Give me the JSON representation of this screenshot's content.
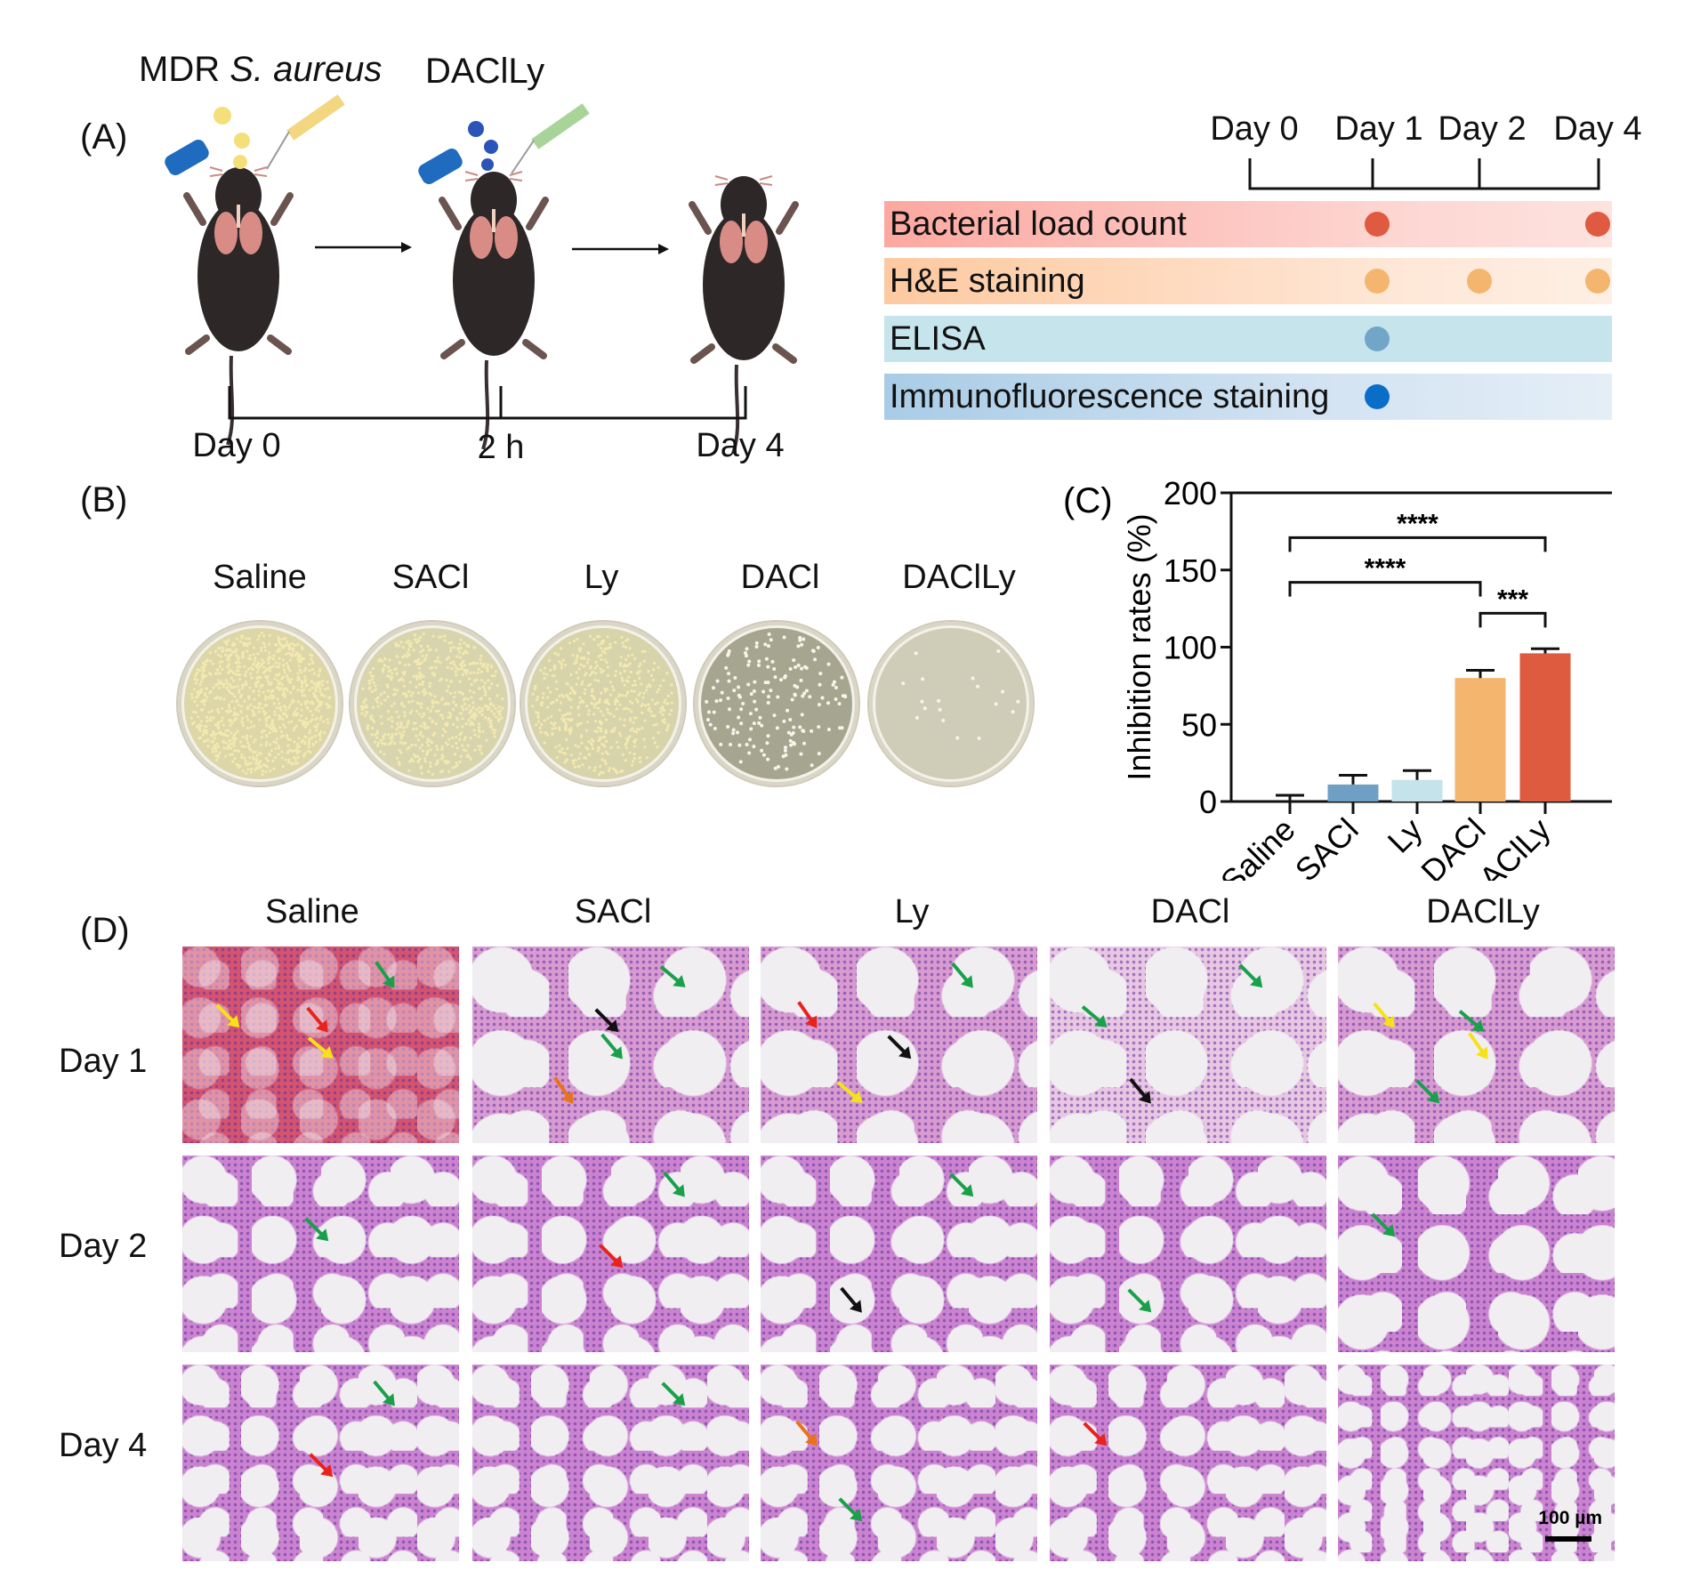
{
  "panelA": {
    "label": "(A)",
    "infection_label_plain": "MDR ",
    "infection_label_italic": "S. aureus",
    "treatment_label": "DAClLy",
    "timeline": [
      "Day 0",
      "2 h",
      "Day 4"
    ],
    "schedule_days": [
      "Day 0",
      "Day 1",
      "Day 2",
      "Day 4"
    ],
    "assays": [
      {
        "name": "Bacterial load count",
        "color": "#df5a40",
        "days": [
          "Day 1",
          "Day 4"
        ]
      },
      {
        "name": "H&E staining",
        "color": "#f4b56e",
        "days": [
          "Day 1",
          "Day 2",
          "Day 4"
        ]
      },
      {
        "name": "ELISA",
        "color": "#72a6c8",
        "days": [
          "Day 1"
        ]
      },
      {
        "name": "Immunofluorescence staining",
        "color": "#0a6ec8",
        "days": [
          "Day 1"
        ]
      }
    ]
  },
  "panelB": {
    "label": "(B)",
    "groups": [
      "Saline",
      "SACl",
      "Ly",
      "DACl",
      "DAClLy"
    ],
    "colony_density": [
      "very high",
      "high",
      "high",
      "moderate",
      "low"
    ]
  },
  "panelD": {
    "label": "(D)",
    "groups": [
      "Saline",
      "SACl",
      "Ly",
      "DACl",
      "DAClLy"
    ],
    "rows": [
      "Day 1",
      "Day 2",
      "Day 4"
    ],
    "arrow_colors": {
      "green": "#1aa04a",
      "yellow": "#f5e21a",
      "red": "#e8231e",
      "black": "#111111",
      "orange": "#e8731a"
    },
    "arrows": [
      [
        [
          "yellow",
          "red",
          "yellow",
          "green"
        ],
        [
          "black",
          "green",
          "green",
          "orange"
        ],
        [
          "black",
          "green",
          "yellow",
          "red"
        ],
        [
          "green",
          "black",
          "green"
        ],
        [
          "green",
          "yellow",
          "green",
          "yellow"
        ]
      ],
      [
        [
          "green"
        ],
        [
          "red",
          "green"
        ],
        [
          "green",
          "black"
        ],
        [
          "green"
        ],
        [
          "green"
        ]
      ],
      [
        [
          "red",
          "green"
        ],
        [
          "green"
        ],
        [
          "green",
          "orange"
        ],
        [
          "red"
        ],
        []
      ]
    ],
    "scale_bar": "100 µm"
  },
  "chart_data": {
    "type": "bar",
    "panel_label": "(C)",
    "categories": [
      "Saline",
      "SACl",
      "Ly",
      "DACl",
      "DAClLy"
    ],
    "values": [
      0,
      11,
      14,
      80,
      96
    ],
    "error_upper": [
      4,
      17,
      20,
      85,
      99
    ],
    "colors": [
      "#ffffff",
      "#6fa0c4",
      "#c5e3ea",
      "#f4b56e",
      "#de5b40"
    ],
    "ylabel": "Inhibition rates (%)",
    "xlabel": "",
    "ylim": [
      0,
      200
    ],
    "yticks": [
      "0",
      "50",
      "100",
      "150",
      "200"
    ],
    "grid": false,
    "significance": [
      {
        "from": "Saline",
        "to": "DAClLy",
        "label": "****"
      },
      {
        "from": "Saline",
        "to": "DACl",
        "label": "****"
      },
      {
        "from": "DACl",
        "to": "DAClLy",
        "label": "***"
      }
    ]
  }
}
